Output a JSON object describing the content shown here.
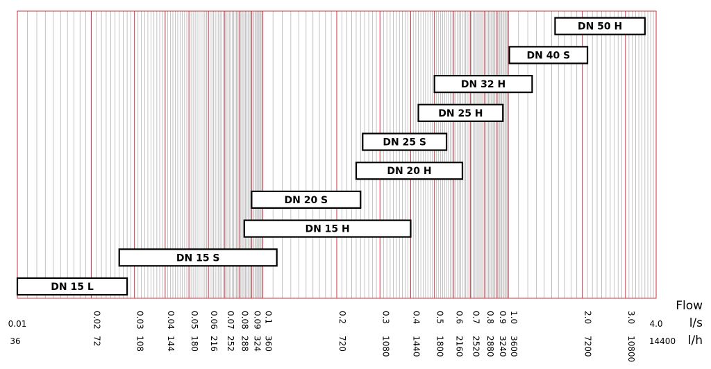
{
  "chart_data": {
    "type": "bar",
    "orientation": "horizontal-range",
    "x_scale": "log",
    "xlim": [
      0.01,
      4.0
    ],
    "xlabel": "Flow",
    "units": {
      "primary": "l/s",
      "secondary": "l/h"
    },
    "grid": true,
    "ticks_ls": [
      "0.01",
      "0.02",
      "0.03",
      "0.04",
      "0.05",
      "0.06",
      "0.07",
      "0.08",
      "0.09",
      "0.1",
      "0.2",
      "0.3",
      "0.4",
      "0.5",
      "0.6",
      "0.7",
      "0.8",
      "0.9",
      "1.0",
      "2.0",
      "3.0",
      "4.0"
    ],
    "ticks_lh": [
      "36",
      "72",
      "108",
      "144",
      "180",
      "216",
      "252",
      "288",
      "324",
      "360",
      "720",
      "1080",
      "1440",
      "1800",
      "2160",
      "2520",
      "2880",
      "3240",
      "3600",
      "7200",
      "10800",
      "14400"
    ],
    "ranges": [
      {
        "name": "DN 15 L",
        "min": 0.01,
        "max": 0.028
      },
      {
        "name": "DN 15 S",
        "min": 0.026,
        "max": 0.114
      },
      {
        "name": "DN 15 H",
        "min": 0.084,
        "max": 0.4
      },
      {
        "name": "DN 20 S",
        "min": 0.09,
        "max": 0.25
      },
      {
        "name": "DN 20 H",
        "min": 0.24,
        "max": 0.65
      },
      {
        "name": "DN 25 S",
        "min": 0.255,
        "max": 0.56
      },
      {
        "name": "DN 25 H",
        "min": 0.43,
        "max": 0.95
      },
      {
        "name": "DN 32 H",
        "min": 0.5,
        "max": 1.25
      },
      {
        "name": "DN 40 S",
        "min": 1.01,
        "max": 2.1
      },
      {
        "name": "DN 50 H",
        "min": 1.55,
        "max": 3.6
      }
    ]
  },
  "colors": {
    "major_grid": "#d32f3f",
    "minor_grid": "#b3b3b3",
    "frame": "#d32f3f",
    "bar_border": "#000000",
    "bar_fill": "#ffffff"
  }
}
